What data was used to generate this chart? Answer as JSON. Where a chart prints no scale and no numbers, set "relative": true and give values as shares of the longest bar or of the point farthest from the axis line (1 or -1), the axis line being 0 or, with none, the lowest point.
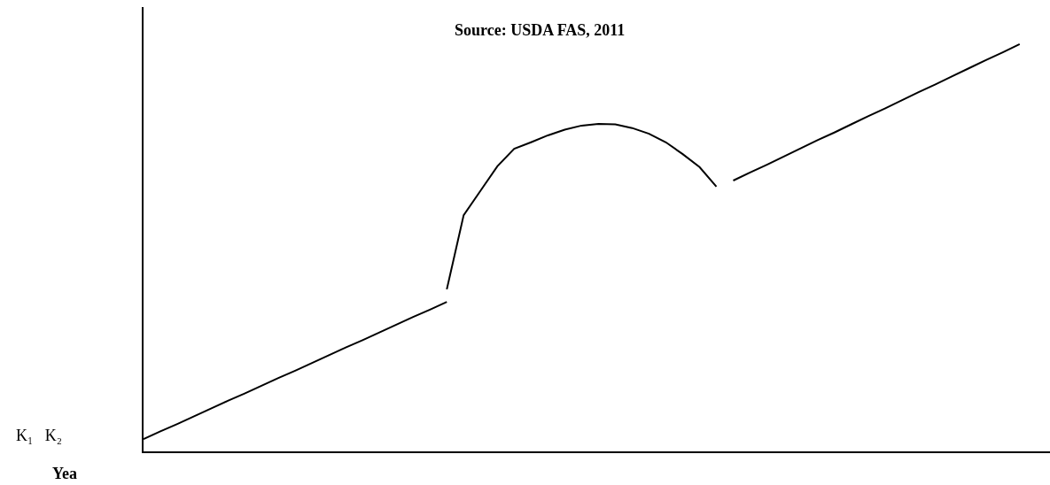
{
  "chart_data": {
    "type": "line",
    "relative": true,
    "xlabel": "Yea",
    "annotations": [
      "Source: USDA FAS, 2011",
      "K₁   K₂"
    ],
    "categories": [
      null,
      null,
      null,
      null,
      null,
      null,
      null,
      null,
      null,
      null,
      null,
      null,
      null,
      null,
      null,
      null,
      null,
      null,
      null,
      null,
      null,
      null,
      null,
      null,
      null,
      null,
      null,
      null,
      null,
      null,
      null,
      null,
      null,
      null,
      null,
      null,
      null,
      null,
      null,
      null,
      null,
      null,
      null,
      null,
      null,
      null,
      null,
      null,
      null,
      null,
      null,
      null,
      null,
      null
    ],
    "series": [
      {
        "color": "#000000",
        "values": [
          0.03,
          0.049,
          0.067,
          0.086,
          0.105,
          0.124,
          0.142,
          0.161,
          0.18,
          0.198,
          0.217,
          0.236,
          0.255,
          0.273,
          0.292,
          0.311,
          0.33,
          0.348,
          0.367,
          null,
          null,
          null,
          null,
          null,
          null,
          null,
          null,
          null,
          null,
          null,
          null,
          null,
          null,
          null,
          null,
          null,
          null,
          null,
          null,
          null,
          null,
          null,
          null,
          null,
          null,
          null,
          null,
          null,
          null,
          null,
          null,
          null,
          null,
          null
        ]
      },
      {
        "color": "#000000",
        "values": [
          null,
          null,
          null,
          null,
          null,
          null,
          null,
          null,
          null,
          null,
          null,
          null,
          null,
          null,
          null,
          null,
          null,
          null,
          0.398,
          0.58,
          0.64,
          0.7,
          0.743,
          0.759,
          0.776,
          0.79,
          0.8,
          0.804,
          0.803,
          0.794,
          0.78,
          0.759,
          0.73,
          0.698,
          0.65,
          null,
          null,
          null,
          null,
          null,
          null,
          null,
          null,
          null,
          null,
          null,
          null,
          null,
          null,
          null,
          null,
          null,
          null,
          null
        ]
      },
      {
        "color": "#000000",
        "values": [
          null,
          null,
          null,
          null,
          null,
          null,
          null,
          null,
          null,
          null,
          null,
          null,
          null,
          null,
          null,
          null,
          null,
          null,
          null,
          null,
          null,
          null,
          null,
          null,
          null,
          null,
          null,
          null,
          null,
          null,
          null,
          null,
          null,
          null,
          null,
          0.665,
          0.685,
          0.704,
          0.724,
          0.744,
          0.764,
          0.783,
          0.803,
          0.823,
          0.842,
          0.862,
          0.882,
          0.901,
          0.921,
          0.941,
          0.961,
          0.98,
          1.0,
          null
        ]
      }
    ],
    "line_style": "solid",
    "marker": "none",
    "grid": false
  }
}
